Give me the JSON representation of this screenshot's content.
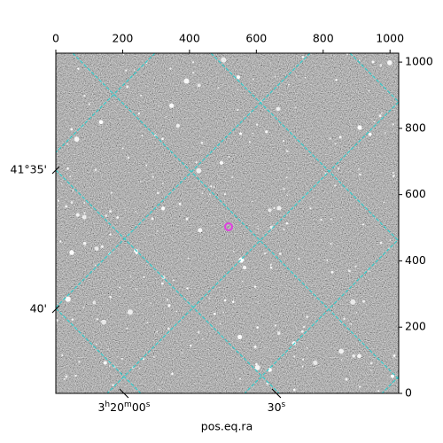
{
  "chart_data": {
    "type": "image",
    "xlabel": "pos.eq.ra",
    "xlim": [
      0,
      1026
    ],
    "ylim": [
      0,
      1027
    ],
    "xticks": [
      0,
      200,
      400,
      600,
      800,
      1000
    ],
    "yticks": [
      0,
      200,
      400,
      600,
      800,
      1000
    ],
    "ra_ticks": [
      {
        "value": 204,
        "label": "3h20m00s"
      },
      {
        "value": 660,
        "label": "30s"
      }
    ],
    "dec_ticks": [
      {
        "value": 674,
        "label": "41°35'"
      },
      {
        "value": 254,
        "label": "40'"
      }
    ]
  }
}
